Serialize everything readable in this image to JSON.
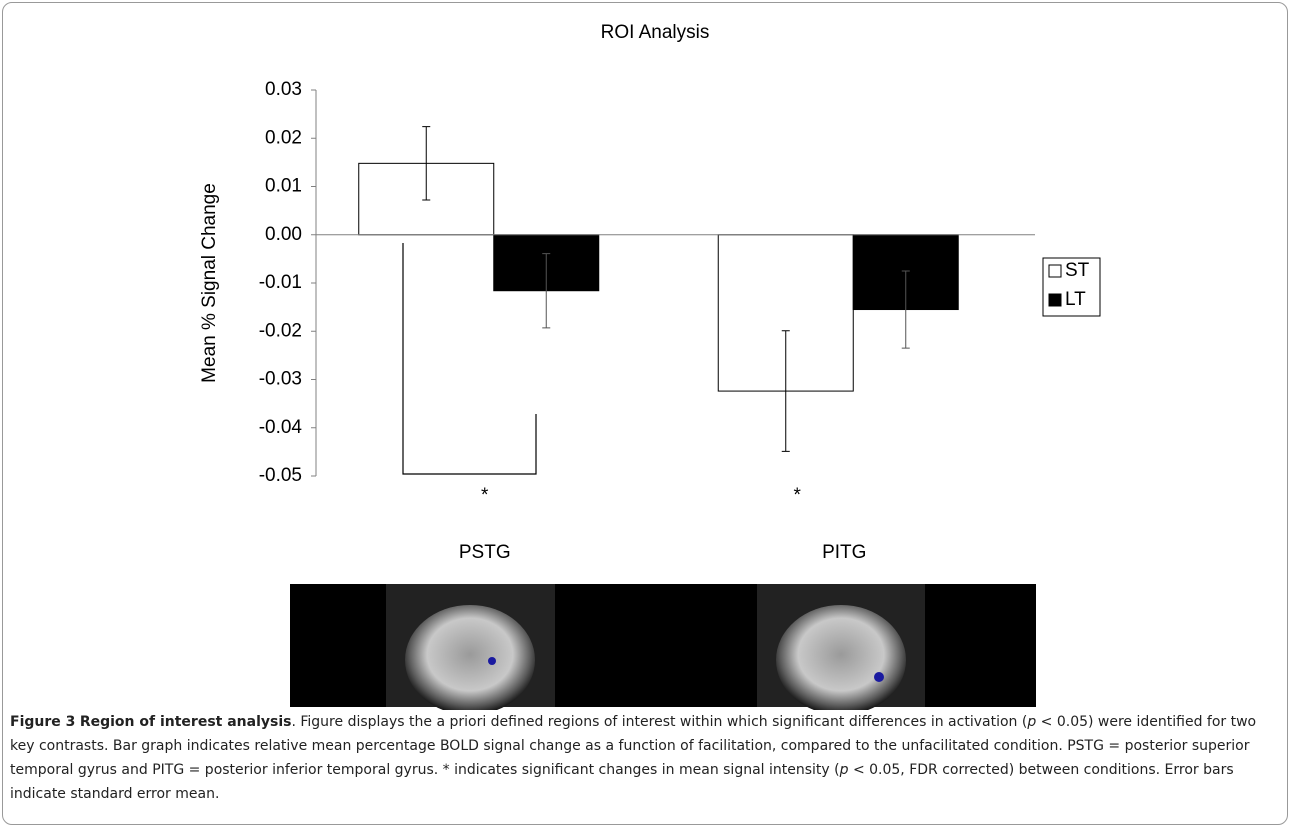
{
  "chart_data": {
    "type": "bar",
    "title": "ROI Analysis",
    "ylabel": "Mean % Signal Change",
    "categories": [
      "PSTG",
      "PITG"
    ],
    "series": [
      {
        "name": "ST",
        "color": "#ffffff",
        "values": [
          0.0148,
          -0.0324
        ],
        "errors": [
          0.0076,
          0.0125
        ]
      },
      {
        "name": "LT",
        "color": "#000000",
        "values": [
          -0.0116,
          -0.0155
        ],
        "errors": [
          0.0077,
          0.008
        ]
      }
    ],
    "annotations": [
      "*",
      "*"
    ],
    "ylim": [
      -0.05,
      0.03
    ],
    "yticks": [
      -0.05,
      -0.04,
      -0.03,
      -0.02,
      -0.01,
      {
        "value": 0,
        "label": "0.00"
      },
      0.01,
      0.02,
      0.03
    ]
  },
  "caption": {
    "label": "Figure 3",
    "title": "Region of interest analysis",
    "body": [
      ". Figure displays the a priori defined regions of interest within which significant differences in activation (",
      "p",
      " < 0.05) were identified for two key contrasts. Bar graph indicates relative mean percentage BOLD signal change as a function of facilitation, compared to the unfacilitated condition. PSTG = posterior superior temporal gyrus and PITG = posterior inferior temporal gyrus. * indicates significant changes in mean signal intensity (",
      "p",
      " < 0.05, FDR corrected) between conditions. Error bars indicate standard error mean."
    ]
  }
}
